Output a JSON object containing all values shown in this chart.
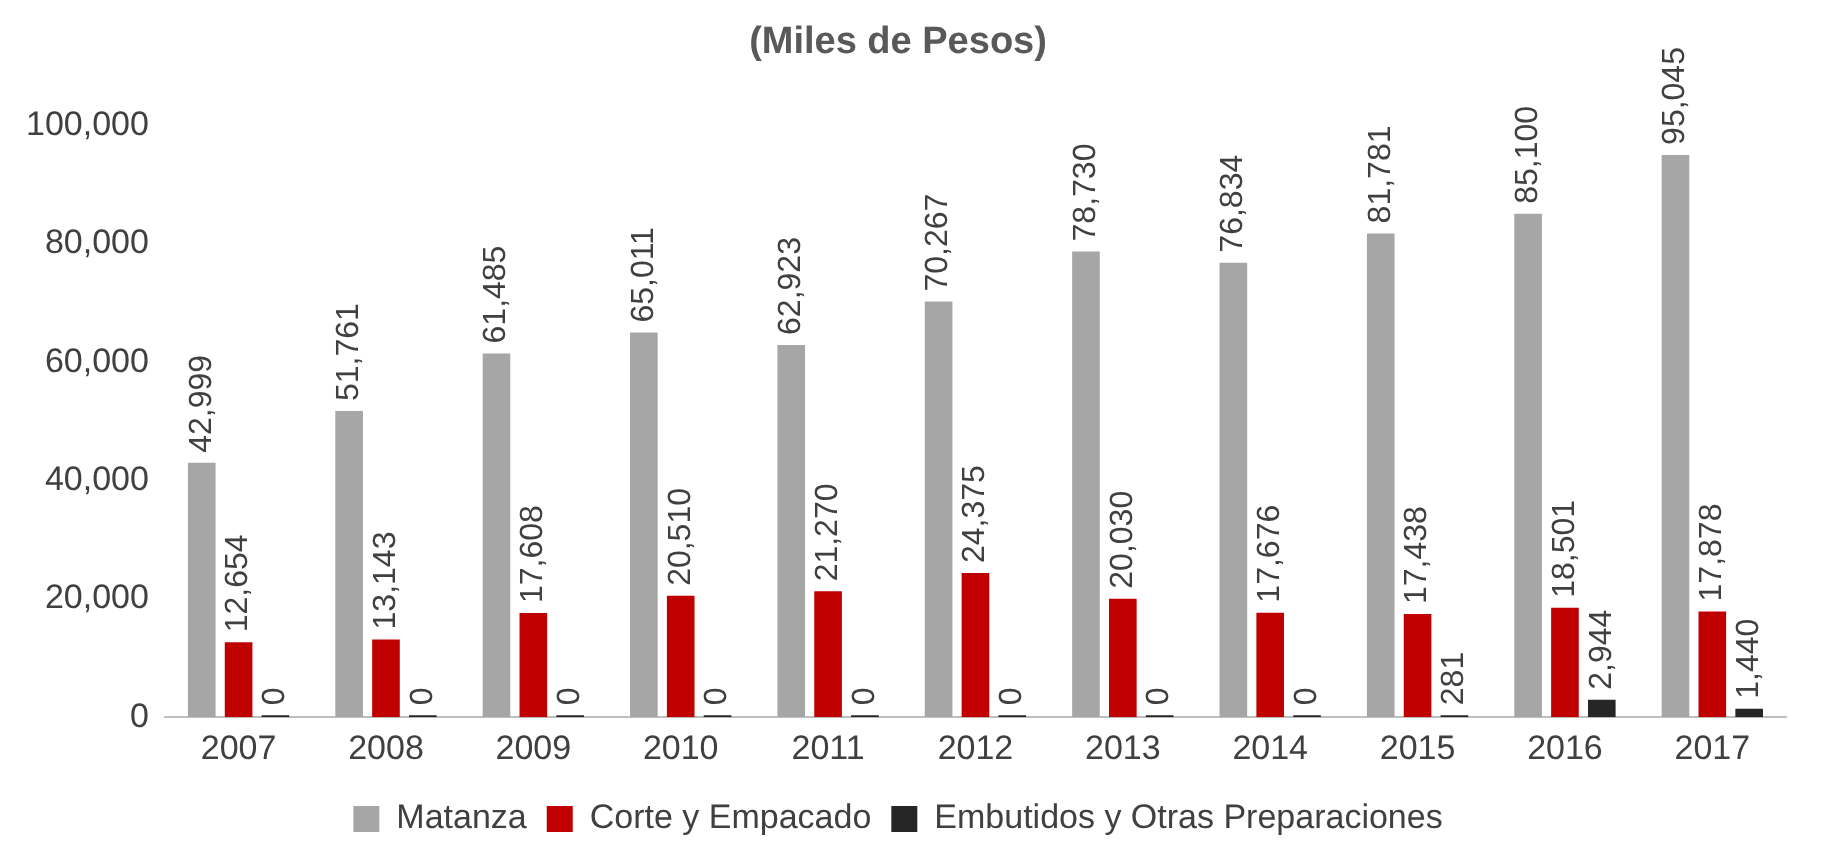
{
  "chart_data": {
    "type": "bar",
    "title": "(Miles de Pesos)",
    "categories": [
      "2007",
      "2008",
      "2009",
      "2010",
      "2011",
      "2012",
      "2013",
      "2014",
      "2015",
      "2016",
      "2017"
    ],
    "series": [
      {
        "name": "Matanza",
        "color": "#a6a6a6",
        "values": [
          42999,
          51761,
          61485,
          65011,
          62923,
          70267,
          78730,
          76834,
          81781,
          85100,
          95045
        ],
        "value_labels": [
          "42,999",
          "51,761",
          "61,485",
          "65,011",
          "62,923",
          "70,267",
          "78,730",
          "76,834",
          "81,781",
          "85,100",
          "95,045"
        ]
      },
      {
        "name": "Corte y Empacado",
        "color": "#c00000",
        "values": [
          12654,
          13143,
          17608,
          20510,
          21270,
          24375,
          20030,
          17676,
          17438,
          18501,
          17878
        ],
        "value_labels": [
          "12,654",
          "13,143",
          "17,608",
          "20,510",
          "21,270",
          "24,375",
          "20,030",
          "17,676",
          "17,438",
          "18,501",
          "17,878"
        ]
      },
      {
        "name": "Embutidos y Otras Preparaciones",
        "color": "#262626",
        "values": [
          0,
          0,
          0,
          0,
          0,
          0,
          0,
          0,
          281,
          2944,
          1440
        ],
        "value_labels": [
          "0",
          "0",
          "0",
          "0",
          "0",
          "0",
          "0",
          "0",
          "281",
          "2,944",
          "1,440"
        ]
      }
    ],
    "ylim": [
      0,
      100000
    ],
    "yticks": [
      {
        "value": 0,
        "label": "0"
      },
      {
        "value": 20000,
        "label": "20,000"
      },
      {
        "value": 40000,
        "label": "40,000"
      },
      {
        "value": 60000,
        "label": "60,000"
      },
      {
        "value": 80000,
        "label": "80,000"
      },
      {
        "value": 100000,
        "label": "100,000"
      }
    ],
    "grid": false,
    "legend": "bottom"
  }
}
